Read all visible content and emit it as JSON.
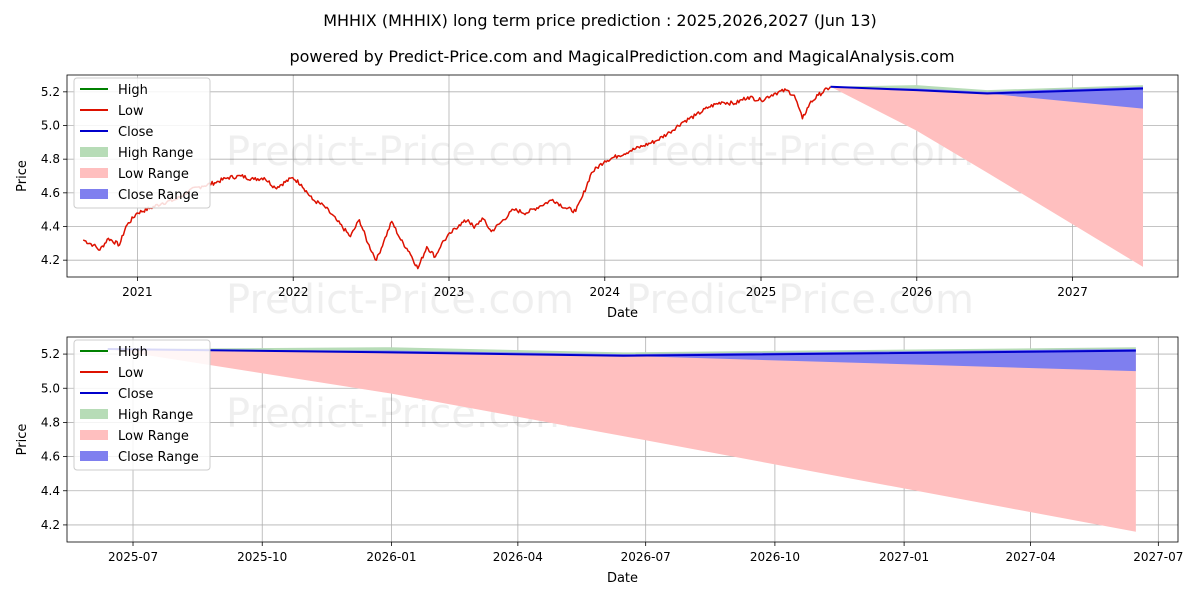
{
  "header": {
    "title": "MHHIX (MHHIX) long term price prediction : 2025,2026,2027 (Jun 13)",
    "subtitle": "powered by Predict-Price.com and MagicalPrediction.com and MagicalAnalysis.com"
  },
  "watermark": "Predict-Price.com",
  "legend": {
    "placement": "upper-left",
    "entries": [
      {
        "label": "High",
        "kind": "line",
        "color": "#008000"
      },
      {
        "label": "Low",
        "kind": "line",
        "color": "#dd1100"
      },
      {
        "label": "Close",
        "kind": "line",
        "color": "#0000cc"
      },
      {
        "label": "High Range",
        "kind": "patch",
        "color": "#b7dcb7"
      },
      {
        "label": "Low Range",
        "kind": "patch",
        "color": "#ffbfbf"
      },
      {
        "label": "Close Range",
        "kind": "patch",
        "color": "#7f7fef"
      }
    ]
  },
  "chart_data": [
    {
      "type": "line",
      "name": "long-term",
      "xlabel": "Date",
      "ylabel": "Price",
      "xlim": [
        "2020-07-20",
        "2027-09-05"
      ],
      "ylim": [
        4.1,
        5.3
      ],
      "grid": true,
      "x_ticks": [
        "2021",
        "2022",
        "2023",
        "2024",
        "2025",
        "2026",
        "2027"
      ],
      "x_tick_dates": [
        "2021-01-01",
        "2022-01-01",
        "2023-01-01",
        "2024-01-01",
        "2025-01-01",
        "2026-01-01",
        "2027-01-01"
      ],
      "y_ticks": [
        4.2,
        4.4,
        4.6,
        4.8,
        5.0,
        5.2
      ],
      "history": {
        "series": "Low",
        "points": [
          [
            "2020-08-27",
            4.32
          ],
          [
            "2020-09-20",
            4.29
          ],
          [
            "2020-10-05",
            4.26
          ],
          [
            "2020-10-25",
            4.33
          ],
          [
            "2020-11-20",
            4.29
          ],
          [
            "2020-12-05",
            4.4
          ],
          [
            "2020-12-31",
            4.48
          ],
          [
            "2021-02-01",
            4.51
          ],
          [
            "2021-03-01",
            4.54
          ],
          [
            "2021-04-01",
            4.56
          ],
          [
            "2021-05-01",
            4.61
          ],
          [
            "2021-06-01",
            4.64
          ],
          [
            "2021-07-01",
            4.66
          ],
          [
            "2021-08-01",
            4.69
          ],
          [
            "2021-09-01",
            4.7
          ],
          [
            "2021-10-01",
            4.68
          ],
          [
            "2021-10-25",
            4.69
          ],
          [
            "2021-11-20",
            4.63
          ],
          [
            "2021-12-31",
            4.69
          ],
          [
            "2022-01-20",
            4.65
          ],
          [
            "2022-02-15",
            4.56
          ],
          [
            "2022-03-15",
            4.52
          ],
          [
            "2022-04-15",
            4.43
          ],
          [
            "2022-05-15",
            4.34
          ],
          [
            "2022-06-05",
            4.44
          ],
          [
            "2022-06-25",
            4.3
          ],
          [
            "2022-07-15",
            4.2
          ],
          [
            "2022-08-01",
            4.31
          ],
          [
            "2022-08-20",
            4.43
          ],
          [
            "2022-09-10",
            4.32
          ],
          [
            "2022-09-30",
            4.25
          ],
          [
            "2022-10-20",
            4.15
          ],
          [
            "2022-11-10",
            4.28
          ],
          [
            "2022-11-30",
            4.22
          ],
          [
            "2022-12-15",
            4.3
          ],
          [
            "2023-01-05",
            4.36
          ],
          [
            "2023-01-25",
            4.41
          ],
          [
            "2023-02-15",
            4.44
          ],
          [
            "2023-03-01",
            4.39
          ],
          [
            "2023-03-20",
            4.45
          ],
          [
            "2023-04-10",
            4.37
          ],
          [
            "2023-05-01",
            4.42
          ],
          [
            "2023-06-01",
            4.5
          ],
          [
            "2023-07-01",
            4.48
          ],
          [
            "2023-08-01",
            4.52
          ],
          [
            "2023-09-01",
            4.56
          ],
          [
            "2023-10-01",
            4.51
          ],
          [
            "2023-10-25",
            4.49
          ],
          [
            "2023-11-10",
            4.58
          ],
          [
            "2023-12-01",
            4.72
          ],
          [
            "2024-01-01",
            4.79
          ],
          [
            "2024-02-01",
            4.82
          ],
          [
            "2024-03-01",
            4.85
          ],
          [
            "2024-04-01",
            4.88
          ],
          [
            "2024-05-01",
            4.91
          ],
          [
            "2024-06-01",
            4.96
          ],
          [
            "2024-07-01",
            5.02
          ],
          [
            "2024-08-01",
            5.06
          ],
          [
            "2024-09-01",
            5.11
          ],
          [
            "2024-10-01",
            5.14
          ],
          [
            "2024-11-01",
            5.13
          ],
          [
            "2024-12-01",
            5.17
          ],
          [
            "2025-01-01",
            5.15
          ],
          [
            "2025-02-01",
            5.19
          ],
          [
            "2025-03-01",
            5.21
          ],
          [
            "2025-03-20",
            5.18
          ],
          [
            "2025-04-08",
            5.04
          ],
          [
            "2025-04-25",
            5.13
          ],
          [
            "2025-05-15",
            5.18
          ],
          [
            "2025-06-13",
            5.23
          ]
        ]
      },
      "forecast": {
        "x": [
          "2025-06-13",
          "2025-12-31",
          "2026-06-15",
          "2027-06-15"
        ],
        "close": [
          5.23,
          5.21,
          5.19,
          5.22
        ],
        "high_upper": [
          5.23,
          5.24,
          5.21,
          5.24
        ],
        "low_lower": [
          5.23,
          4.97,
          4.72,
          4.16
        ],
        "close_upper": [
          5.23,
          5.22,
          5.2,
          5.23
        ],
        "close_lower": [
          5.23,
          5.21,
          5.19,
          5.1
        ]
      }
    },
    {
      "type": "line",
      "name": "forecast-zoom",
      "xlabel": "Date",
      "ylabel": "Price",
      "xlim": [
        "2025-05-15",
        "2027-07-15"
      ],
      "ylim": [
        4.1,
        5.3
      ],
      "grid": true,
      "x_ticks": [
        "2025-07",
        "2025-10",
        "2026-01",
        "2026-04",
        "2026-07",
        "2026-10",
        "2027-01",
        "2027-04",
        "2027-07"
      ],
      "x_tick_dates": [
        "2025-07-01",
        "2025-10-01",
        "2026-01-01",
        "2026-04-01",
        "2026-07-01",
        "2026-10-01",
        "2027-01-01",
        "2027-04-01",
        "2027-07-01"
      ],
      "y_ticks": [
        4.2,
        4.4,
        4.6,
        4.8,
        5.0,
        5.2
      ],
      "forecast": {
        "x": [
          "2025-06-13",
          "2025-12-31",
          "2026-06-15",
          "2027-06-15"
        ],
        "close": [
          5.23,
          5.21,
          5.19,
          5.22
        ],
        "high_upper": [
          5.23,
          5.24,
          5.21,
          5.24
        ],
        "low_lower": [
          5.23,
          4.97,
          4.72,
          4.16
        ],
        "close_upper": [
          5.23,
          5.22,
          5.2,
          5.23
        ],
        "close_lower": [
          5.23,
          5.21,
          5.19,
          5.1
        ]
      }
    }
  ]
}
